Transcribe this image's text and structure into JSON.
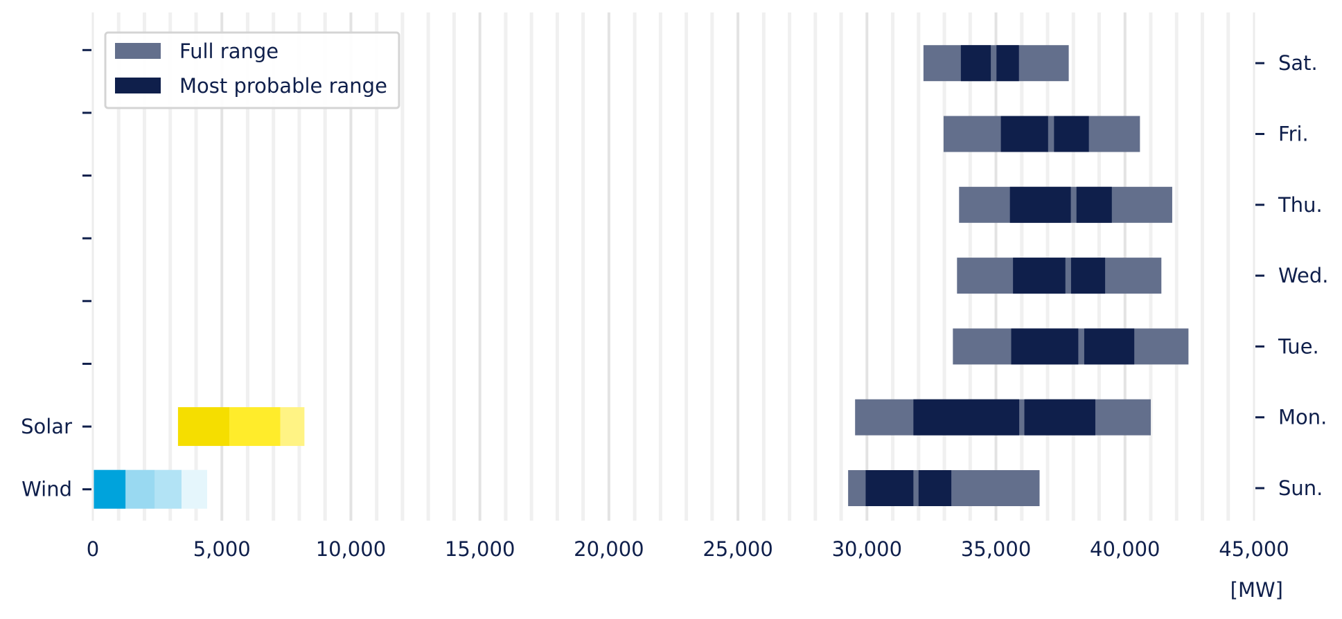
{
  "chart_data": {
    "type": "bar",
    "orientation": "horizontal",
    "x_unit": "[MW]",
    "xlim": [
      0,
      45000
    ],
    "x_ticks": [
      0,
      5000,
      10000,
      15000,
      20000,
      25000,
      30000,
      35000,
      40000,
      45000
    ],
    "x_tick_labels": [
      "0",
      "5,000",
      "10,000",
      "15,000",
      "20,000",
      "25,000",
      "30,000",
      "35,000",
      "40,000",
      "45,000"
    ],
    "grid": "vertical",
    "legend": {
      "position": "top-left",
      "entries": [
        {
          "label": "Full range",
          "color": "#636f8c"
        },
        {
          "label": "Most probable range",
          "color": "#0f1f4b"
        }
      ]
    },
    "left_axis": {
      "categories": [
        "Wind",
        "Solar"
      ],
      "bars": [
        {
          "category": "Wind",
          "segments": [
            {
              "start": 0,
              "end": 1270,
              "color": "#00a3dc"
            },
            {
              "start": 1270,
              "end": 2400,
              "color": "#99d9f1"
            },
            {
              "start": 2400,
              "end": 3440,
              "color": "#b2e3f5"
            },
            {
              "start": 3440,
              "end": 4430,
              "color": "#e5f6fc"
            }
          ]
        },
        {
          "category": "Solar",
          "segments": [
            {
              "start": 3300,
              "end": 5290,
              "color": "#f5de00"
            },
            {
              "start": 5290,
              "end": 7270,
              "color": "#ffec2b"
            },
            {
              "start": 7270,
              "end": 8200,
              "color": "#fff384"
            }
          ]
        }
      ]
    },
    "right_axis": {
      "categories": [
        "Sun.",
        "Mon.",
        "Tue.",
        "Wed.",
        "Thu.",
        "Fri.",
        "Sat."
      ],
      "series": [
        {
          "category": "Sun.",
          "full_range": [
            29270,
            36690
          ],
          "probable_ranges": [
            [
              29950,
              31800
            ],
            [
              32000,
              33270
            ]
          ]
        },
        {
          "category": "Mon.",
          "full_range": [
            29540,
            41000
          ],
          "probable_ranges": [
            [
              31800,
              35900
            ],
            [
              36100,
              38850
            ]
          ]
        },
        {
          "category": "Tue.",
          "full_range": [
            33330,
            42460
          ],
          "probable_ranges": [
            [
              35590,
              38190
            ],
            [
              38420,
              40360
            ]
          ]
        },
        {
          "category": "Wed.",
          "full_range": [
            33490,
            41410
          ],
          "probable_ranges": [
            [
              35660,
              37690
            ],
            [
              37910,
              39230
            ]
          ]
        },
        {
          "category": "Thu.",
          "full_range": [
            33570,
            41830
          ],
          "probable_ranges": [
            [
              35540,
              37900
            ],
            [
              38120,
              39490
            ]
          ]
        },
        {
          "category": "Fri.",
          "full_range": [
            32970,
            40580
          ],
          "probable_ranges": [
            [
              35190,
              37020
            ],
            [
              37250,
              38600
            ]
          ]
        },
        {
          "category": "Sat.",
          "full_range": [
            32190,
            37820
          ],
          "probable_ranges": [
            [
              33640,
              34800
            ],
            [
              35020,
              35890
            ]
          ]
        }
      ]
    }
  }
}
